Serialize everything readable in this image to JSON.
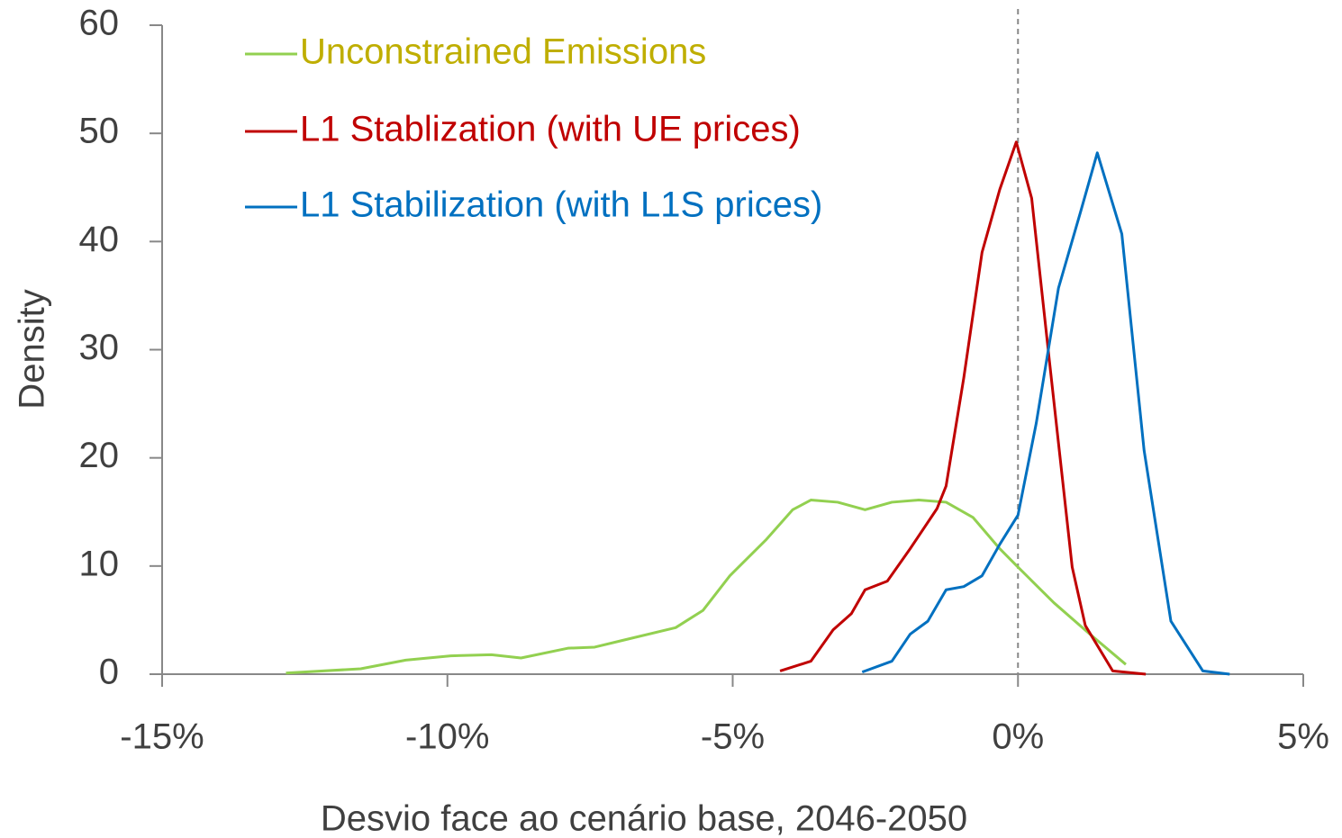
{
  "chart_data": {
    "type": "line",
    "xlabel": "Desvio face ao cenário base, 2046-2050",
    "ylabel": "Density",
    "xlim": [
      -15,
      5
    ],
    "ylim": [
      0,
      60
    ],
    "xticks": [
      {
        "value": -15,
        "label": "-15%"
      },
      {
        "value": -10,
        "label": "-10%"
      },
      {
        "value": -5,
        "label": "-5%"
      },
      {
        "value": 0,
        "label": "0%"
      },
      {
        "value": 5,
        "label": "5%"
      }
    ],
    "yticks": [
      0,
      10,
      20,
      30,
      40,
      50,
      60
    ],
    "vline": 0,
    "legend": "upper left",
    "series": [
      {
        "name": "Unconstrained Emissions",
        "color": "#92d050",
        "label_color": "#bfae00",
        "x": [
          -12.83,
          -11.52,
          -10.73,
          -9.94,
          -9.23,
          -8.71,
          -7.89,
          -7.42,
          -6.95,
          -6.0,
          -5.52,
          -5.05,
          -4.42,
          -3.95,
          -3.63,
          -3.16,
          -2.68,
          -2.21,
          -1.74,
          -1.26,
          -0.79,
          -0.32,
          0,
          0.63,
          1.26,
          1.89
        ],
        "values": [
          0.1,
          0.5,
          1.3,
          1.7,
          1.8,
          1.5,
          2.4,
          2.5,
          3.1,
          4.3,
          5.9,
          9.1,
          12.4,
          15.2,
          16.1,
          15.9,
          15.2,
          15.9,
          16.1,
          15.9,
          14.5,
          11.6,
          9.9,
          6.6,
          3.7,
          0.9
        ]
      },
      {
        "name": "L1 Stablization (with UE prices)",
        "color": "#c00000",
        "label_color": "#c00000",
        "x": [
          -4.17,
          -3.63,
          -3.24,
          -2.92,
          -2.68,
          -2.29,
          -1.89,
          -1.42,
          -1.26,
          -0.95,
          -0.63,
          -0.32,
          -0.03,
          0.24,
          0.55,
          0.95,
          1.18,
          1.66,
          2.24
        ],
        "values": [
          0.3,
          1.2,
          4.1,
          5.6,
          7.8,
          8.6,
          11.6,
          15.3,
          17.4,
          27.4,
          39,
          44.8,
          49.2,
          44,
          29,
          9.9,
          4.5,
          0.3,
          0
        ]
      },
      {
        "name": "L1 Stabilization (with L1S prices)",
        "color": "#0070c0",
        "label_color": "#0070c0",
        "x": [
          -2.73,
          -2.21,
          -1.89,
          -1.58,
          -1.26,
          -0.95,
          -0.63,
          -0.32,
          0,
          0.32,
          0.71,
          1.1,
          1.39,
          1.82,
          2.21,
          2.68,
          3.24,
          3.71
        ],
        "values": [
          0.2,
          1.2,
          3.7,
          4.9,
          7.8,
          8.1,
          9.1,
          12,
          14.7,
          23.2,
          35.7,
          42.8,
          48.2,
          40.7,
          20.7,
          4.9,
          0.3,
          0
        ]
      }
    ]
  }
}
